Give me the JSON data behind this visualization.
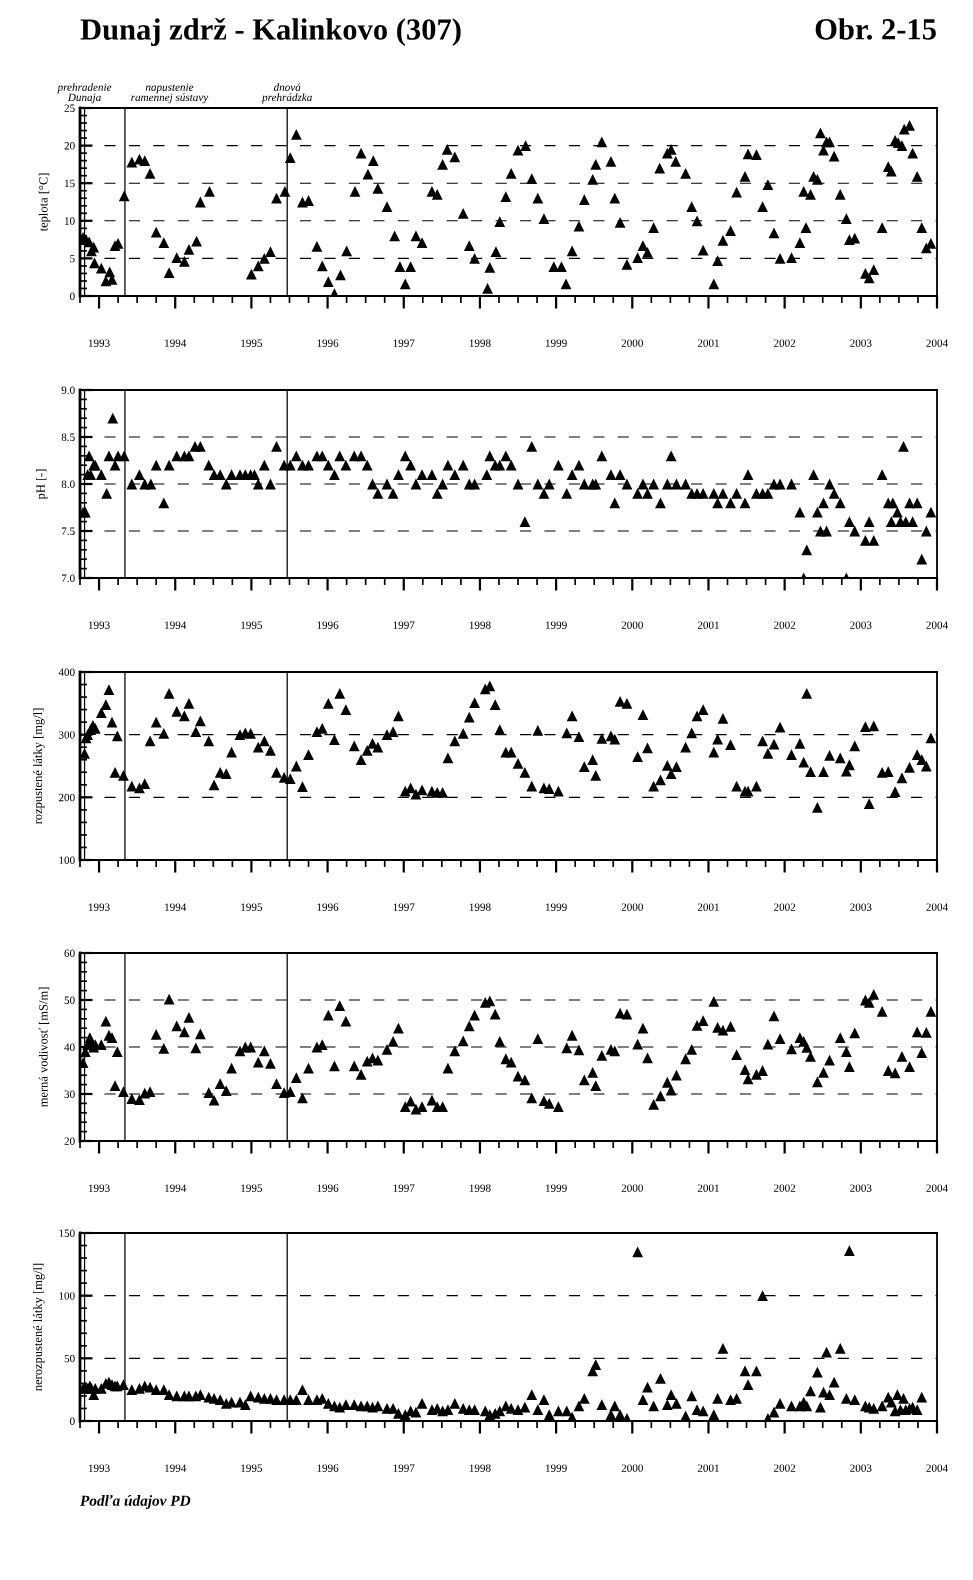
{
  "chart_data": [
    {
      "type": "scatter",
      "title": "Dunaj zdrž - Kalinkovo (307)",
      "annotations": [
        "Obr. 2-15"
      ],
      "ylabel": "teplota [°C]",
      "marker": "triangle",
      "color": "#000000",
      "grid": "y",
      "xlim": [
        1992.75,
        2004.0
      ],
      "xticks": [
        1993,
        1994,
        1995,
        1996,
        1997,
        1998,
        1999,
        2000,
        2001,
        2002,
        2003,
        2004
      ],
      "ylim": [
        0,
        25
      ],
      "yticks": [
        0,
        5,
        10,
        15,
        20,
        25
      ],
      "ref_lines": [
        {
          "axis": "x",
          "value": 1992.81,
          "label": "prehradenie\nDunaja",
          "line_style": "solid"
        },
        {
          "axis": "x",
          "value": 1993.34,
          "label": "napustenie\nramennej sústavy",
          "line_style": "solid"
        },
        {
          "axis": "x",
          "value": 1995.47,
          "label": "dnová\nprehrádzka",
          "line_style": "solid"
        }
      ],
      "x": [
        1992.79,
        1992.83,
        1992.87,
        1992.9,
        1992.93,
        1992.94,
        1993.03,
        1993.09,
        1993.14,
        1993.17,
        1993.21,
        1993.25,
        1993.33,
        1993.43,
        1993.53,
        1993.6,
        1993.67,
        1993.75,
        1993.85,
        1993.92,
        1994.02,
        1994.12,
        1994.18,
        1994.28,
        1994.33,
        1994.45,
        1995.0,
        1995.09,
        1995.17,
        1995.25,
        1995.33,
        1995.44,
        1995.51,
        1995.59,
        1995.67,
        1995.75,
        1995.86,
        1995.93,
        1996.01,
        1996.09,
        1996.17,
        1996.25,
        1996.36,
        1996.44,
        1996.53,
        1996.6,
        1996.66,
        1996.78,
        1996.88,
        1996.95,
        1997.02,
        1997.09,
        1997.16,
        1997.24,
        1997.37,
        1997.44,
        1997.51,
        1997.57,
        1997.67,
        1997.78,
        1997.86,
        1997.93,
        1998.1,
        1998.13,
        1998.21,
        1998.26,
        1998.34,
        1998.41,
        1998.5,
        1998.6,
        1998.68,
        1998.76,
        1998.84,
        1998.97,
        1999.07,
        1999.13,
        1999.21,
        1999.3,
        1999.37,
        1999.48,
        1999.52,
        1999.6,
        1999.72,
        1999.77,
        1999.84,
        1999.93,
        2000.07,
        2000.14,
        2000.2,
        2000.28,
        2000.36,
        2000.46,
        2000.51,
        2000.57,
        2000.7,
        2000.78,
        2000.85,
        2000.93,
        2001.07,
        2001.12,
        2001.19,
        2001.29,
        2001.37,
        2001.48,
        2001.52,
        2001.63,
        2001.71,
        2001.78,
        2001.86,
        2001.94,
        2002.09,
        2002.2,
        2002.28,
        2002.25,
        2002.34,
        2002.38,
        2002.43,
        2002.47,
        2002.51,
        2002.55,
        2002.59,
        2002.65,
        2002.73,
        2002.81,
        2002.85,
        2002.92,
        2003.06,
        2003.11,
        2003.17,
        2003.28,
        2003.36,
        2003.4,
        2003.45,
        2003.49,
        2003.54,
        2003.57,
        2003.64,
        2003.68,
        2003.74,
        2003.8,
        2003.86,
        2003.92
      ],
      "values": [
        7.8,
        7.5,
        7.2,
        6.0,
        6.5,
        4.4,
        3.7,
        2.0,
        3.2,
        2.2,
        6.7,
        7.0,
        13.3,
        17.8,
        18.2,
        18.0,
        16.3,
        8.5,
        7.1,
        3.1,
        5.1,
        4.6,
        6.2,
        7.3,
        12.5,
        13.9,
        2.9,
        4.0,
        5.0,
        5.9,
        13.0,
        13.9,
        18.4,
        21.5,
        12.5,
        12.7,
        6.6,
        4.0,
        1.9,
        0.3,
        2.8,
        6.0,
        13.9,
        19.0,
        16.2,
        18.0,
        14.3,
        11.9,
        8.0,
        3.9,
        1.6,
        3.9,
        8.0,
        7.1,
        13.9,
        13.5,
        17.5,
        19.5,
        18.5,
        11.0,
        6.7,
        5.0,
        1.0,
        3.8,
        5.9,
        9.9,
        13.2,
        16.3,
        19.4,
        20.0,
        15.6,
        13.0,
        10.3,
        3.9,
        3.9,
        1.6,
        6.0,
        9.3,
        12.8,
        15.5,
        17.5,
        20.5,
        17.9,
        13.0,
        9.8,
        4.2,
        5.1,
        6.7,
        5.8,
        9.1,
        17.0,
        19.0,
        19.5,
        17.9,
        16.3,
        11.9,
        10.0,
        6.1,
        1.6,
        4.7,
        7.4,
        8.7,
        13.8,
        15.9,
        18.9,
        18.8,
        11.9,
        14.8,
        8.4,
        5.0,
        5.1,
        7.1,
        9.1,
        13.9,
        13.5,
        15.9,
        15.5,
        21.7,
        19.4,
        20.5,
        20.5,
        18.6,
        13.5,
        10.3,
        7.5,
        7.7,
        3.0,
        2.4,
        3.5,
        9.1,
        17.2,
        16.6,
        20.7,
        20.4,
        20.0,
        22.2,
        22.7,
        19.0,
        15.9,
        9.1,
        6.4,
        7.0
      ]
    },
    {
      "type": "scatter",
      "ylabel": "pH [-]",
      "marker": "triangle",
      "color": "#000000",
      "grid": "y",
      "xlim": [
        1992.75,
        2004.0
      ],
      "xticks": [
        1993,
        1994,
        1995,
        1996,
        1997,
        1998,
        1999,
        2000,
        2001,
        2002,
        2003,
        2004
      ],
      "ylim": [
        7.0,
        9.0
      ],
      "yticks": [
        {
          "value": 7.0,
          "label": "7.0"
        },
        {
          "value": 7.5,
          "label": "7.5"
        },
        {
          "value": 8.0,
          "label": "8.0"
        },
        {
          "value": 8.5,
          "label": "8.5"
        },
        {
          "value": 9.0,
          "label": "9.0"
        }
      ],
      "ref_lines": [
        {
          "axis": "x",
          "value": 1992.81,
          "line_style": "solid"
        },
        {
          "axis": "x",
          "value": 1993.34,
          "line_style": "solid"
        },
        {
          "axis": "x",
          "value": 1995.47,
          "line_style": "solid"
        }
      ],
      "x": [
        1992.79,
        1992.82,
        1992.85,
        1992.87,
        1992.89,
        1992.93,
        1992.95,
        1993.03,
        1993.1,
        1993.13,
        1993.18,
        1993.21,
        1993.25,
        1993.33,
        1993.43,
        1993.53,
        1993.6,
        1993.68,
        1993.75,
        1993.85,
        1993.92,
        1994.02,
        1994.12,
        1994.18,
        1994.26,
        1994.33,
        1994.44,
        1994.51,
        1994.59,
        1994.67,
        1994.74,
        1994.85,
        1994.92,
        1994.99,
        1995.04,
        1995.09,
        1995.17,
        1995.25,
        1995.33,
        1995.43,
        1995.51,
        1995.59,
        1995.67,
        1995.75,
        1995.86,
        1995.93,
        1996.01,
        1996.09,
        1996.16,
        1996.24,
        1996.35,
        1996.44,
        1996.52,
        1996.59,
        1996.66,
        1996.78,
        1996.86,
        1996.93,
        1997.02,
        1997.09,
        1997.16,
        1997.24,
        1997.37,
        1997.44,
        1997.51,
        1997.58,
        1997.67,
        1997.78,
        1997.86,
        1997.93,
        1998.09,
        1998.13,
        1998.2,
        1998.26,
        1998.34,
        1998.41,
        1998.5,
        1998.59,
        1998.68,
        1998.76,
        1998.84,
        1998.91,
        1999.03,
        1999.14,
        1999.21,
        1999.3,
        1999.37,
        1999.48,
        1999.52,
        1999.6,
        1999.72,
        1999.77,
        1999.84,
        1999.93,
        2000.07,
        2000.14,
        2000.2,
        2000.28,
        2000.37,
        2000.46,
        2000.51,
        2000.58,
        2000.7,
        2000.78,
        2000.85,
        2000.93,
        2001.07,
        2001.12,
        2001.19,
        2001.29,
        2001.37,
        2001.48,
        2001.52,
        2001.63,
        2001.71,
        2001.78,
        2001.86,
        2001.94,
        2002.09,
        2002.2,
        2002.25,
        2002.29,
        2002.38,
        2002.43,
        2002.47,
        2002.51,
        2002.55,
        2002.59,
        2002.65,
        2002.73,
        2002.81,
        2002.85,
        2002.92,
        2003.06,
        2003.11,
        2003.17,
        2003.28,
        2003.36,
        2003.4,
        2003.42,
        2003.48,
        2003.52,
        2003.56,
        2003.59,
        2003.64,
        2003.68,
        2003.74,
        2003.8,
        2003.86,
        2003.92
      ],
      "values": [
        7.7,
        7.7,
        8.1,
        8.3,
        8.1,
        8.2,
        8.2,
        8.1,
        7.9,
        8.3,
        8.7,
        8.2,
        8.3,
        8.3,
        8.0,
        8.1,
        8.0,
        8.0,
        8.2,
        7.8,
        8.2,
        8.3,
        8.3,
        8.3,
        8.4,
        8.4,
        8.2,
        8.1,
        8.1,
        8.0,
        8.1,
        8.1,
        8.1,
        8.1,
        8.1,
        8.0,
        8.2,
        8.0,
        8.4,
        8.2,
        8.2,
        8.3,
        8.2,
        8.2,
        8.3,
        8.3,
        8.2,
        8.1,
        8.3,
        8.2,
        8.3,
        8.3,
        8.2,
        8.0,
        7.9,
        8.0,
        7.9,
        8.1,
        8.3,
        8.2,
        8.0,
        8.1,
        8.1,
        7.9,
        8.0,
        8.2,
        8.1,
        8.2,
        8.0,
        8.0,
        8.1,
        8.3,
        8.2,
        8.2,
        8.3,
        8.2,
        8.0,
        7.6,
        8.4,
        8.0,
        7.9,
        8.0,
        8.2,
        7.9,
        8.1,
        8.2,
        8.0,
        8.0,
        8.0,
        8.3,
        8.1,
        7.8,
        8.1,
        8.0,
        7.9,
        8.0,
        7.9,
        8.0,
        7.8,
        8.0,
        8.3,
        8.0,
        8.0,
        7.9,
        7.9,
        7.9,
        7.9,
        7.8,
        7.9,
        7.8,
        7.9,
        7.8,
        8.1,
        7.9,
        7.9,
        7.9,
        8.0,
        8.0,
        8.0,
        7.7,
        7.0,
        7.3,
        8.1,
        7.7,
        7.5,
        7.8,
        7.5,
        8.0,
        7.9,
        7.8,
        7.0,
        7.6,
        7.5,
        7.4,
        7.6,
        7.4,
        8.1,
        7.8,
        7.6,
        7.8,
        7.7,
        7.6,
        8.4,
        7.6,
        7.8,
        7.6,
        7.8,
        7.2,
        7.5,
        7.7
      ]
    },
    {
      "type": "scatter",
      "ylabel": "rozpustené látky [mg/l]",
      "marker": "triangle",
      "color": "#000000",
      "grid": "y",
      "xlim": [
        1992.75,
        2004.0
      ],
      "xticks": [
        1993,
        1994,
        1995,
        1996,
        1997,
        1998,
        1999,
        2000,
        2001,
        2002,
        2003,
        2004
      ],
      "ylim": [
        100,
        400
      ],
      "yticks": [
        100,
        200,
        300,
        400
      ],
      "ref_lines": [
        {
          "axis": "x",
          "value": 1992.81,
          "line_style": "solid"
        },
        {
          "axis": "x",
          "value": 1993.34,
          "line_style": "solid"
        },
        {
          "axis": "x",
          "value": 1995.47,
          "line_style": "solid"
        }
      ],
      "x": [
        1992.81,
        1992.83,
        1992.85,
        1992.89,
        1992.92,
        1992.95,
        1993.03,
        1993.09,
        1993.13,
        1993.17,
        1993.24,
        1993.21,
        1993.32,
        1993.43,
        1993.53,
        1993.6,
        1993.67,
        1993.75,
        1993.85,
        1993.92,
        1994.02,
        1994.12,
        1994.18,
        1994.27,
        1994.33,
        1994.44,
        1994.51,
        1994.59,
        1994.67,
        1994.74,
        1994.85,
        1994.92,
        1994.99,
        1995.09,
        1995.17,
        1995.25,
        1995.33,
        1995.43,
        1995.51,
        1995.59,
        1995.67,
        1995.75,
        1995.86,
        1995.93,
        1996.01,
        1996.09,
        1996.16,
        1996.24,
        1996.35,
        1996.44,
        1996.52,
        1996.59,
        1996.66,
        1996.78,
        1996.86,
        1996.93,
        1997.02,
        1997.09,
        1997.16,
        1997.24,
        1997.37,
        1997.44,
        1997.51,
        1997.58,
        1997.67,
        1997.78,
        1997.86,
        1997.93,
        1998.07,
        1998.13,
        1998.2,
        1998.26,
        1998.34,
        1998.41,
        1998.5,
        1998.59,
        1998.68,
        1998.76,
        1998.84,
        1998.91,
        1999.03,
        1999.14,
        1999.21,
        1999.3,
        1999.37,
        1999.48,
        1999.52,
        1999.6,
        1999.72,
        1999.77,
        1999.84,
        1999.93,
        2000.07,
        2000.14,
        2000.2,
        2000.28,
        2000.37,
        2000.46,
        2000.51,
        2000.58,
        2000.7,
        2000.78,
        2000.85,
        2000.93,
        2001.07,
        2001.12,
        2001.19,
        2001.29,
        2001.37,
        2001.48,
        2001.52,
        2001.63,
        2001.71,
        2001.78,
        2001.86,
        2001.94,
        2002.09,
        2002.2,
        2002.25,
        2002.29,
        2002.34,
        2002.43,
        2002.51,
        2002.59,
        2002.73,
        2002.81,
        2002.85,
        2002.92,
        2003.06,
        2003.11,
        2003.17,
        2003.28,
        2003.36,
        2003.45,
        2003.54,
        2003.64,
        2003.74,
        2003.8,
        2003.86,
        2003.92
      ],
      "values": [
        270,
        295,
        300,
        308,
        315,
        310,
        335,
        348,
        372,
        320,
        298,
        240,
        235,
        218,
        215,
        222,
        290,
        320,
        302,
        366,
        337,
        330,
        350,
        305,
        322,
        290,
        220,
        240,
        238,
        272,
        300,
        303,
        302,
        280,
        290,
        275,
        240,
        232,
        230,
        250,
        217,
        268,
        305,
        310,
        350,
        292,
        366,
        340,
        282,
        260,
        275,
        286,
        280,
        300,
        305,
        330,
        210,
        215,
        205,
        212,
        210,
        208,
        208,
        263,
        290,
        302,
        328,
        351,
        373,
        378,
        348,
        308,
        272,
        272,
        254,
        240,
        218,
        307,
        215,
        214,
        210,
        303,
        330,
        297,
        249,
        260,
        235,
        294,
        298,
        293,
        353,
        350,
        265,
        332,
        279,
        218,
        228,
        251,
        238,
        249,
        280,
        303,
        330,
        340,
        272,
        293,
        326,
        284,
        218,
        210,
        210,
        218,
        290,
        270,
        285,
        312,
        268,
        286,
        256,
        366,
        241,
        184,
        241,
        267,
        263,
        242,
        252,
        282,
        313,
        190,
        314,
        240,
        241,
        209,
        231,
        248,
        268,
        260,
        250,
        295
      ]
    },
    {
      "type": "scatter",
      "ylabel": "merná vodivosť [mS/m]",
      "marker": "triangle",
      "color": "#000000",
      "grid": "y",
      "xlim": [
        1992.75,
        2004.0
      ],
      "xticks": [
        1993,
        1994,
        1995,
        1996,
        1997,
        1998,
        1999,
        2000,
        2001,
        2002,
        2003,
        2004
      ],
      "ylim": [
        20,
        60
      ],
      "yticks": [
        20,
        30,
        40,
        50,
        60
      ],
      "ref_lines": [
        {
          "axis": "x",
          "value": 1992.81,
          "line_style": "solid"
        },
        {
          "axis": "x",
          "value": 1993.34,
          "line_style": "solid"
        },
        {
          "axis": "x",
          "value": 1995.47,
          "line_style": "solid"
        }
      ],
      "x": [
        1992.79,
        1992.82,
        1992.85,
        1992.88,
        1992.9,
        1992.93,
        1992.95,
        1993.03,
        1993.09,
        1993.13,
        1993.17,
        1993.24,
        1993.21,
        1993.32,
        1993.43,
        1993.53,
        1993.6,
        1993.67,
        1993.75,
        1993.85,
        1993.92,
        1994.02,
        1994.12,
        1994.18,
        1994.27,
        1994.33,
        1994.44,
        1994.51,
        1994.59,
        1994.67,
        1994.74,
        1994.85,
        1994.92,
        1994.99,
        1995.09,
        1995.17,
        1995.25,
        1995.33,
        1995.43,
        1995.51,
        1995.59,
        1995.67,
        1995.75,
        1995.86,
        1995.93,
        1996.01,
        1996.09,
        1996.16,
        1996.24,
        1996.35,
        1996.44,
        1996.52,
        1996.59,
        1996.66,
        1996.78,
        1996.86,
        1996.93,
        1997.02,
        1997.09,
        1997.16,
        1997.24,
        1997.37,
        1997.44,
        1997.51,
        1997.58,
        1997.67,
        1997.78,
        1997.86,
        1997.93,
        1998.07,
        1998.13,
        1998.2,
        1998.26,
        1998.34,
        1998.41,
        1998.5,
        1998.59,
        1998.68,
        1998.76,
        1998.84,
        1998.91,
        1999.03,
        1999.14,
        1999.21,
        1999.3,
        1999.37,
        1999.48,
        1999.52,
        1999.6,
        1999.72,
        1999.77,
        1999.84,
        1999.93,
        2000.07,
        2000.14,
        2000.2,
        2000.28,
        2000.37,
        2000.46,
        2000.51,
        2000.58,
        2000.7,
        2000.78,
        2000.85,
        2000.93,
        2001.07,
        2001.12,
        2001.19,
        2001.29,
        2001.37,
        2001.48,
        2001.52,
        2001.63,
        2001.71,
        2001.78,
        2001.86,
        2001.94,
        2002.09,
        2002.2,
        2002.25,
        2002.29,
        2002.34,
        2002.43,
        2002.51,
        2002.59,
        2002.73,
        2002.81,
        2002.85,
        2002.92,
        2003.06,
        2003.11,
        2003.17,
        2003.28,
        2003.36,
        2003.45,
        2003.54,
        2003.64,
        2003.74,
        2003.8,
        2003.86,
        2003.92
      ],
      "values": [
        36.7,
        39,
        40.5,
        42,
        41,
        40,
        40.5,
        40.5,
        45.5,
        42.5,
        42,
        39,
        31.8,
        30.5,
        29,
        28.8,
        30.2,
        30.5,
        42.7,
        39.7,
        50.2,
        44.5,
        43.2,
        46.3,
        39.8,
        42.8,
        30.3,
        28.7,
        32.2,
        30.7,
        35.5,
        39.2,
        40,
        40,
        36.8,
        39.2,
        36.5,
        32.2,
        30.3,
        30.5,
        33.5,
        29.2,
        35.5,
        40,
        40.5,
        46.8,
        36,
        48.8,
        45.5,
        36,
        34.2,
        37,
        37.7,
        37.2,
        39.5,
        41.2,
        44,
        27.3,
        28.5,
        26.8,
        27.3,
        28.7,
        27.3,
        27.3,
        35.5,
        39.2,
        41.3,
        44.5,
        46.8,
        49.5,
        49.8,
        47,
        41.2,
        37.5,
        36.8,
        33.8,
        33,
        29.2,
        41.8,
        28.6,
        28,
        27.3,
        39.8,
        42.5,
        39.4,
        33,
        34.6,
        31.8,
        38.2,
        39.5,
        39.2,
        47.2,
        47,
        40.6,
        44,
        37.7,
        27.8,
        29.6,
        32.5,
        30.8,
        34,
        37.5,
        39.5,
        44.6,
        45.6,
        49.7,
        44.2,
        43.6,
        44.4,
        38.4,
        35.2,
        33.2,
        34.2,
        35,
        40.6,
        46.6,
        41.8,
        39.6,
        42,
        41.2,
        39.9,
        38,
        32.6,
        34.6,
        37.2,
        42,
        39,
        35.8,
        43,
        50,
        49.5,
        51.2,
        47.6,
        35,
        34.5,
        38,
        35.8,
        43.2,
        38.8,
        43.1,
        47.6
      ]
    },
    {
      "type": "scatter",
      "ylabel": "nerozpustené látky [mg/l]",
      "annotations": [
        "Podľa údajov PD"
      ],
      "marker": "triangle",
      "color": "#000000",
      "grid": "y",
      "xlim": [
        1992.75,
        2004.0
      ],
      "xticks": [
        1993,
        1994,
        1995,
        1996,
        1997,
        1998,
        1999,
        2000,
        2001,
        2002,
        2003,
        2004
      ],
      "ylim": [
        0,
        150
      ],
      "yticks": [
        0,
        50,
        100,
        150
      ],
      "ref_lines": [
        {
          "axis": "x",
          "value": 1992.81,
          "line_style": "solid"
        },
        {
          "axis": "x",
          "value": 1993.34,
          "line_style": "solid"
        },
        {
          "axis": "x",
          "value": 1995.47,
          "line_style": "solid"
        }
      ],
      "x": [
        1992.79,
        1992.82,
        1992.85,
        1992.88,
        1992.9,
        1992.93,
        1992.95,
        1993.03,
        1993.09,
        1993.13,
        1993.17,
        1993.24,
        1993.21,
        1993.32,
        1993.43,
        1993.53,
        1993.6,
        1993.67,
        1993.75,
        1993.85,
        1993.92,
        1994.02,
        1994.12,
        1994.18,
        1994.27,
        1994.33,
        1994.44,
        1994.51,
        1994.59,
        1994.67,
        1994.74,
        1994.85,
        1994.92,
        1994.99,
        1995.09,
        1995.17,
        1995.25,
        1995.33,
        1995.43,
        1995.51,
        1995.59,
        1995.67,
        1995.75,
        1995.86,
        1995.93,
        1996.01,
        1996.09,
        1996.16,
        1996.24,
        1996.35,
        1996.44,
        1996.52,
        1996.59,
        1996.66,
        1996.78,
        1996.86,
        1996.93,
        1997.02,
        1997.09,
        1997.16,
        1997.24,
        1997.37,
        1997.44,
        1997.51,
        1997.58,
        1997.67,
        1997.78,
        1997.86,
        1997.93,
        1998.07,
        1998.13,
        1998.2,
        1998.26,
        1998.34,
        1998.41,
        1998.5,
        1998.59,
        1998.68,
        1998.76,
        1998.84,
        1998.91,
        1999.03,
        1999.14,
        1999.21,
        1999.3,
        1999.37,
        1999.48,
        1999.52,
        1999.6,
        1999.72,
        1999.77,
        1999.84,
        1999.93,
        2000.07,
        2000.14,
        2000.2,
        2000.28,
        2000.37,
        2000.46,
        2000.51,
        2000.58,
        2000.7,
        2000.78,
        2000.85,
        2000.93,
        2001.07,
        2001.12,
        2001.19,
        2001.29,
        2001.37,
        2001.48,
        2001.52,
        2001.63,
        2001.71,
        2001.78,
        2001.86,
        2001.94,
        2002.09,
        2002.2,
        2002.25,
        2002.29,
        2002.34,
        2002.43,
        2002.47,
        2002.51,
        2002.55,
        2002.59,
        2002.65,
        2002.73,
        2002.81,
        2002.92,
        2002.85,
        2003.06,
        2003.11,
        2003.17,
        2003.28,
        2003.36,
        2003.4,
        2003.45,
        2003.48,
        2003.52,
        2003.56,
        2003.59,
        2003.64,
        2003.68,
        2003.74,
        2003.8
      ],
      "values": [
        26,
        27,
        26,
        28,
        26,
        21,
        26,
        26,
        30,
        31,
        29,
        28,
        28,
        29,
        25,
        26,
        28,
        27,
        25,
        25,
        21,
        20,
        20,
        20,
        20,
        21,
        19,
        18,
        17,
        14,
        15,
        15,
        13,
        20,
        19,
        18,
        18,
        17,
        17,
        17,
        17,
        25,
        17,
        17,
        18,
        14,
        12,
        11,
        13,
        13,
        12,
        12,
        11,
        12,
        10,
        10,
        6,
        5,
        8,
        7,
        14,
        9,
        10,
        8,
        9,
        14,
        10,
        9,
        9,
        8,
        5,
        6,
        8,
        12,
        10,
        9,
        11,
        21,
        9,
        17,
        5,
        8,
        8,
        3,
        12,
        18,
        40,
        45,
        13,
        5,
        12,
        5,
        2,
        135,
        17,
        27,
        12,
        34,
        13,
        21,
        14,
        4,
        20,
        9,
        8,
        5,
        18,
        58,
        17,
        18,
        40,
        29,
        40,
        100,
        2,
        7,
        14,
        12,
        12,
        15,
        12,
        24,
        39,
        11,
        23,
        55,
        21,
        31,
        58,
        18,
        17,
        136,
        12,
        11,
        10,
        12,
        19,
        15,
        8,
        21,
        9,
        18,
        9,
        10,
        11,
        9,
        19
      ]
    }
  ]
}
